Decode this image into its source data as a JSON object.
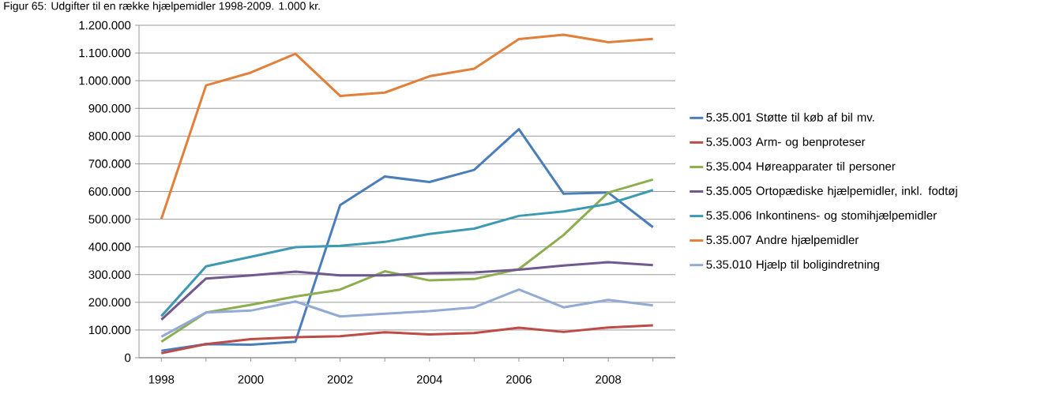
{
  "chart_data": {
    "type": "line",
    "title": "Figur 65: Udgifter til en række hjælpemidler 1998-2009. 1.000 kr.",
    "categories": [
      "1998",
      null,
      "2000",
      null,
      "2002",
      null,
      "2004",
      null,
      "2006",
      null,
      "2008",
      null
    ],
    "series": [
      {
        "name": "5.35.001 Støtte til køb af bil mv.",
        "color": "#4a7ebb",
        "values": [
          25000,
          49000,
          47000,
          58000,
          551000,
          654000,
          634000,
          678000,
          825000,
          592000,
          596000,
          471000
        ]
      },
      {
        "name": "5.35.003 Arm- og benproteser",
        "color": "#be4b48",
        "values": [
          16000,
          49000,
          67000,
          74000,
          78000,
          92000,
          84000,
          89000,
          108000,
          93000,
          109000,
          117000
        ]
      },
      {
        "name": "5.35.004 Høreapparater til personer",
        "color": "#8cae4e",
        "values": [
          58000,
          163000,
          191000,
          221000,
          246000,
          312000,
          279000,
          284000,
          320000,
          443000,
          596000,
          643000
        ]
      },
      {
        "name": "5.35.005 Ortopædiske hjælpemidler, inkl. fodtøj",
        "color": "#70598f",
        "values": [
          137000,
          286000,
          297000,
          311000,
          297000,
          297000,
          305000,
          308000,
          318000,
          333000,
          345000,
          334000
        ]
      },
      {
        "name": "5.35.006 Inkontinens- og stomihjælpemidler",
        "color": "#3e9ab3",
        "values": [
          150000,
          330000,
          364000,
          399000,
          404000,
          418000,
          447000,
          466000,
          512000,
          528000,
          555000,
          605000
        ]
      },
      {
        "name": "5.35.007 Andre hjælpemidler",
        "color": "#e0803a",
        "values": [
          501000,
          983000,
          1029000,
          1097000,
          945000,
          957000,
          1016000,
          1043000,
          1150000,
          1166000,
          1139000,
          1151000
        ]
      },
      {
        "name": "5.35.010 Hjælp til boligindretning",
        "color": "#93aad4",
        "values": [
          76000,
          163000,
          170000,
          203000,
          149000,
          159000,
          168000,
          182000,
          246000,
          182000,
          209000,
          189000
        ]
      }
    ],
    "ylim": [
      0,
      1200000
    ],
    "yticks": [
      0,
      {
        "value": 100000,
        "label": "100.000"
      },
      {
        "value": 200000,
        "label": "200.000"
      },
      {
        "value": 300000,
        "label": "300.000"
      },
      {
        "value": 400000,
        "label": "400.000"
      },
      {
        "value": 500000,
        "label": "500.000"
      },
      {
        "value": 600000,
        "label": "600.000"
      },
      {
        "value": 700000,
        "label": "700.000"
      },
      {
        "value": 800000,
        "label": "800.000"
      },
      {
        "value": 900000,
        "label": "900.000"
      },
      {
        "value": 1000000,
        "label": "1.000.000"
      },
      {
        "value": 1100000,
        "label": "1.100.000"
      },
      {
        "value": 1200000,
        "label": "1.200.000"
      }
    ],
    "grid": "y",
    "legend": "right"
  }
}
